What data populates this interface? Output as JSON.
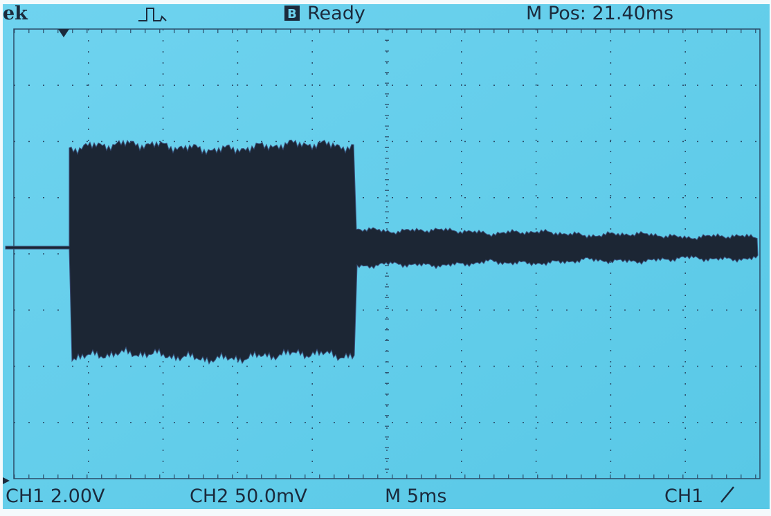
{
  "header": {
    "brand": "ek",
    "status_icon": "B",
    "status": "Ready",
    "position": "M Pos: 21.40ms"
  },
  "footer": {
    "ch1": "CH1 2.00V",
    "ch2": "CH2 50.0mV",
    "timebase": "M 5ms",
    "trigger": "CH1"
  }
}
